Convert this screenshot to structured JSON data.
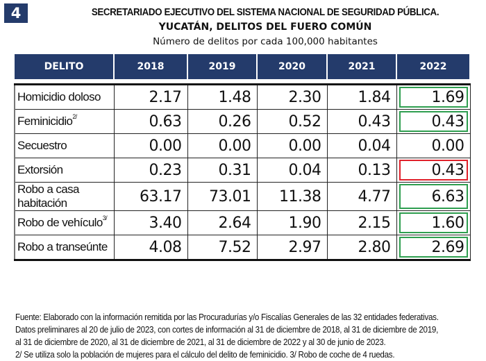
{
  "badge": "4",
  "header": {
    "line1": "SECRETARIADO EJECUTIVO DEL SISTEMA NACIONAL DE SEGURIDAD PÚBLICA.",
    "line2": "YUCATÁN, DELITOS DEL FUERO COMÚN",
    "line3": "Número de delitos por cada 100,000 habitantes"
  },
  "table": {
    "columns": [
      "DELITO",
      "2018",
      "2019",
      "2020",
      "2021",
      "2022"
    ],
    "rows": [
      {
        "delito": "Homicidio doloso",
        "note": "",
        "values": [
          "2.17",
          "1.48",
          "2.30",
          "1.84",
          "1.69"
        ],
        "highlight_2022": "green"
      },
      {
        "delito": "Feminicidio",
        "note": "2/",
        "values": [
          "0.63",
          "0.26",
          "0.52",
          "0.43",
          "0.43"
        ],
        "highlight_2022": "green"
      },
      {
        "delito": "Secuestro",
        "note": "",
        "values": [
          "0.00",
          "0.00",
          "0.00",
          "0.04",
          "0.00"
        ],
        "highlight_2022": "none"
      },
      {
        "delito": "Extorsión",
        "note": "",
        "values": [
          "0.23",
          "0.31",
          "0.04",
          "0.13",
          "0.43"
        ],
        "highlight_2022": "red"
      },
      {
        "delito": "Robo a casa habitación",
        "note": "",
        "values": [
          "63.17",
          "73.01",
          "11.38",
          "4.77",
          "6.63"
        ],
        "highlight_2022": "green"
      },
      {
        "delito": "Robo de vehículo",
        "note": "3/",
        "values": [
          "3.40",
          "2.64",
          "1.90",
          "2.15",
          "1.60"
        ],
        "highlight_2022": "green"
      },
      {
        "delito": "Robo a transeúnte",
        "note": "",
        "values": [
          "4.08",
          "7.52",
          "2.97",
          "2.80",
          "2.69"
        ],
        "highlight_2022": "green"
      }
    ]
  },
  "colors": {
    "header_bg": "#243b6b",
    "highlight_green": "#2e9e4f",
    "highlight_red": "#e0202a"
  },
  "footer": {
    "lines": [
      "Fuente: Elaborado con la información remitida por las Procuradurías y/o Fiscalías Generales de las 32 entidades federativas.",
      "Datos preliminares al 20 de julio de 2023, con cortes de información al 31 de diciembre de 2018, al 31 de diciembre de 2019,",
      "al 31 de diciembre de 2020, al 31 de diciembre de 2021, al 31 de diciembre de 2022 y al 30 de junio de 2023.",
      "2/ Se utiliza solo la población de mujeres para el cálculo del delito de feminicidio. 3/ Robo de coche de 4 ruedas."
    ]
  }
}
